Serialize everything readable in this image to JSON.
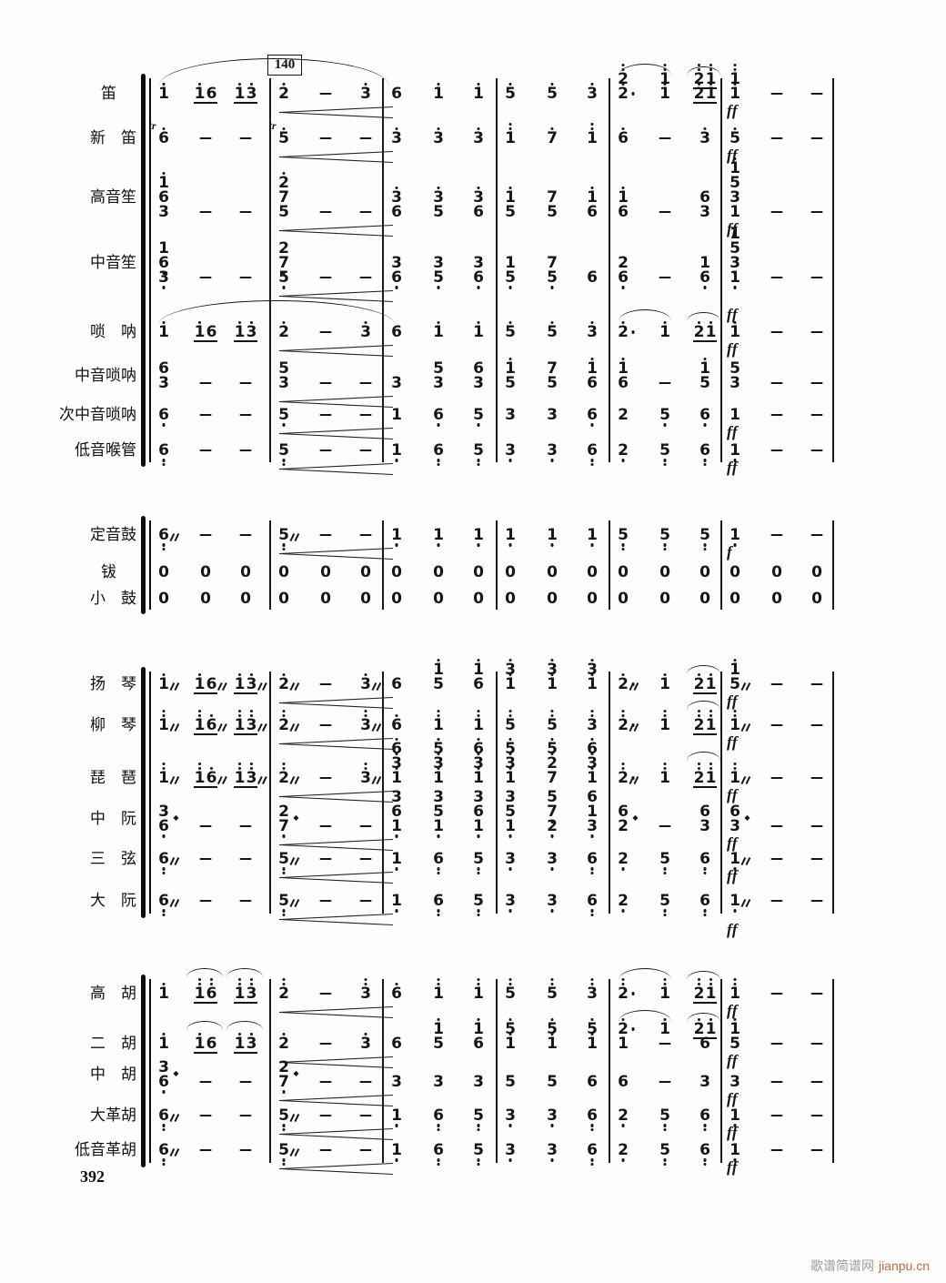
{
  "page": {
    "rehearsal_mark": "140",
    "page_number": "392",
    "watermark": {
      "site_name": "歌谱简谱网",
      "site_url": "jianpu.cn"
    }
  },
  "colors": {
    "ink": "#161616",
    "paper": "#fdfdfc",
    "watermark_gray": "#9b9b9b",
    "watermark_orange": "#c06a45"
  },
  "score": {
    "notation": "jianpu",
    "measures_per_system": 6,
    "beats_per_measure": 3,
    "groups": [
      {
        "name": "winds",
        "instruments": [
          {
            "id": "di",
            "label": "笛",
            "dyn": "ff",
            "cresc": true,
            "cells": [
              [
                "1'",
                "(1' 6)",
                "(1' 3')"
              ],
              [
                "2'",
                "-",
                "3'"
              ],
              [
                "6",
                "1'",
                "1'"
              ],
              [
                "5'",
                "5'",
                "3'"
              ],
              [
                "2''/2'.",
                "1''/1'",
                "(2'' 1'')/(2' 1')"
              ],
              [
                "1''/1'",
                "-",
                "-"
              ]
            ]
          },
          {
            "id": "xindi",
            "label": "新　笛",
            "dyn": "ff",
            "cresc": true,
            "cells": [
              [
                "tr:6'",
                "-",
                "-"
              ],
              [
                "tr:5'",
                "-",
                "-"
              ],
              [
                "3'",
                "3'",
                "3'"
              ],
              [
                "1''",
                "7'",
                "1''"
              ],
              [
                "6'",
                "-",
                "3'"
              ],
              [
                "5'",
                "-",
                "-"
              ]
            ]
          },
          {
            "id": "gaoyinsheng",
            "label": "高音笙",
            "dyn": "ff",
            "cresc": true,
            "cells": [
              [
                "1'/6/3",
                "-",
                "-"
              ],
              [
                "2'/7/5",
                "-",
                "-"
              ],
              [
                "3'/6",
                "3'/5",
                "3'/6"
              ],
              [
                "1'/5",
                "7/5",
                "1'/6"
              ],
              [
                "1'/6",
                "-",
                "6/3"
              ],
              [
                "1'/5/3/1",
                "-",
                "-"
              ]
            ]
          },
          {
            "id": "zhongyinsheng",
            "label": "中音笙",
            "dyn": "ff",
            "cresc": true,
            "cells": [
              [
                "1/6,/3,",
                "-",
                "-"
              ],
              [
                "2/7,/5,",
                "-",
                "-"
              ],
              [
                "3/6,",
                "3/5,",
                "3/6,"
              ],
              [
                "1/5,",
                "7/5,",
                "6"
              ],
              [
                "2/6,",
                "-",
                "1/6,"
              ],
              [
                "1/5/3,/1,",
                "-",
                "-"
              ]
            ]
          },
          {
            "id": "suona",
            "label": "唢　呐",
            "dyn": "ff",
            "cresc": true,
            "cells": [
              [
                "1'",
                "(1' 6)",
                "(1' 3')"
              ],
              [
                "2'",
                "-",
                "3'"
              ],
              [
                "6",
                "1'",
                "1'"
              ],
              [
                "5'",
                "5'",
                "3'"
              ],
              [
                "2'.",
                "1'",
                "(2' 1')"
              ],
              [
                "1'",
                "-",
                "-"
              ]
            ]
          },
          {
            "id": "zhongyinsuona",
            "label": "中音唢呐",
            "dyn": null,
            "cresc": true,
            "cells": [
              [
                "6/3",
                "-",
                "-"
              ],
              [
                "5/3",
                "-",
                "-"
              ],
              [
                "3",
                "5/3",
                "6/3"
              ],
              [
                "1'/5",
                "7/5",
                "1'/6"
              ],
              [
                "1'/6",
                "-",
                "1'/5"
              ],
              [
                "5/3",
                "-",
                "-"
              ]
            ]
          },
          {
            "id": "cizhongyinsuona",
            "label": "次中音唢呐",
            "dyn": "ff",
            "cresc": true,
            "cells": [
              [
                "6,",
                "-",
                "-"
              ],
              [
                "5,",
                "-",
                "-"
              ],
              [
                "1",
                "6,",
                "5,"
              ],
              [
                "3",
                "3",
                "6,"
              ],
              [
                "2",
                "5,",
                "6,"
              ],
              [
                "1",
                "-",
                "-"
              ]
            ]
          },
          {
            "id": "diyinhouguan",
            "label": "低音喉管",
            "dyn": "ff",
            "cresc": true,
            "cells": [
              [
                "6,,",
                "-",
                "-"
              ],
              [
                "5,,",
                "-",
                "-"
              ],
              [
                "1,",
                "6,,",
                "5,,"
              ],
              [
                "3,",
                "3,",
                "6,,"
              ],
              [
                "2,",
                "5,,",
                "6,,"
              ],
              [
                "1,",
                "-",
                "-"
              ]
            ]
          }
        ]
      },
      {
        "name": "percussion",
        "instruments": [
          {
            "id": "dingyingu",
            "label": "定音鼓",
            "dyn": "f",
            "cresc": true,
            "cells": [
              [
                "6,,%",
                "-",
                "-"
              ],
              [
                "5,,%",
                "-",
                "-"
              ],
              [
                "1,",
                "1,",
                "1,"
              ],
              [
                "1,",
                "1,",
                "1,"
              ],
              [
                "5,,",
                "5,,",
                "5,,"
              ],
              [
                "1,",
                "-",
                "-"
              ]
            ]
          },
          {
            "id": "bo",
            "label": "钹",
            "dyn": null,
            "cresc": false,
            "cells": [
              [
                "0",
                "0",
                "0"
              ],
              [
                "0",
                "0",
                "0"
              ],
              [
                "0",
                "0",
                "0"
              ],
              [
                "0",
                "0",
                "0"
              ],
              [
                "0",
                "0",
                "0"
              ],
              [
                "0",
                "0",
                "0"
              ]
            ]
          },
          {
            "id": "xiaogu",
            "label": "小　鼓",
            "dyn": null,
            "cresc": false,
            "cells": [
              [
                "0",
                "0",
                "0"
              ],
              [
                "0",
                "0",
                "0"
              ],
              [
                "0",
                "0",
                "0"
              ],
              [
                "0",
                "0",
                "0"
              ],
              [
                "0",
                "0",
                "0"
              ],
              [
                "0",
                "0",
                "0"
              ]
            ]
          }
        ]
      },
      {
        "name": "plucked-strings",
        "instruments": [
          {
            "id": "yangqin",
            "label": "扬　琴",
            "dyn": "ff",
            "cresc": true,
            "cells": [
              [
                "1'%",
                "(1' 6)%",
                "(1' 3')%"
              ],
              [
                "2'%",
                "-",
                "3'%"
              ],
              [
                "6",
                "1'/5",
                "1'/6"
              ],
              [
                "3'/1'",
                "3'/1'",
                "3'/1'"
              ],
              [
                "2'.%",
                "1'",
                "(2' 1')"
              ],
              [
                "1'/5%",
                "-",
                "-"
              ]
            ]
          },
          {
            "id": "liuqin",
            "label": "柳　琴",
            "dyn": "ff",
            "cresc": true,
            "cells": [
              [
                "1''%",
                "(1'' 6')%",
                "(1'' 3'')%"
              ],
              [
                "2''%",
                "-",
                "3''%"
              ],
              [
                "6'",
                "1''",
                "1''"
              ],
              [
                "5''",
                "5''",
                "3''"
              ],
              [
                "2''.%",
                "1''",
                "(2'' 1'')"
              ],
              [
                "1''%",
                "-",
                "-"
              ]
            ]
          },
          {
            "id": "pipa",
            "label": "琵　琶",
            "dyn": "ff",
            "cresc": true,
            "cells": [
              [
                "1''%",
                "(1'' 6')%",
                "(1'' 3'')%"
              ],
              [
                "2''%",
                "-",
                "3''%"
              ],
              [
                "6'/3'/1'",
                "5'/3'/1'",
                "6'/3'/1'"
              ],
              [
                "5'/3'/1'",
                "5'/2'/7",
                "6'/3'/1'"
              ],
              [
                "2''.%",
                "1''",
                "(2'' 1'')"
              ],
              [
                "1''%",
                "-",
                "-"
              ]
            ]
          },
          {
            "id": "zhongruan",
            "label": "中　阮",
            "dyn": "ff",
            "cresc": true,
            "cells": [
              [
                "3/6,$",
                "-",
                "-"
              ],
              [
                "2/7,$",
                "-",
                "-"
              ],
              [
                "3/6/1,",
                "3/5/1,",
                "3/6/1,"
              ],
              [
                "3/5/1,",
                "5/7,/2,",
                "6/1/3,"
              ],
              [
                "6/2$",
                "-",
                "6/3"
              ],
              [
                "6/3$",
                "-",
                "-"
              ]
            ]
          },
          {
            "id": "sanxian",
            "label": "三　弦",
            "dyn": "ff",
            "cresc": true,
            "cells": [
              [
                "6,,%",
                "-",
                "-"
              ],
              [
                "5,,%",
                "-",
                "-"
              ],
              [
                "1,",
                "6,,",
                "5,,"
              ],
              [
                "3,",
                "3,",
                "6,,"
              ],
              [
                "2,",
                "5,,",
                "6,,"
              ],
              [
                "1,%",
                "-",
                "-"
              ]
            ]
          },
          {
            "id": "daruan",
            "label": "大　阮",
            "dyn": "ff",
            "cresc": true,
            "cells": [
              [
                "6,,%",
                "-",
                "-"
              ],
              [
                "5,,%",
                "-",
                "-"
              ],
              [
                "1,",
                "6,,",
                "5,,"
              ],
              [
                "3,",
                "3,",
                "6,,"
              ],
              [
                "2,",
                "5,,",
                "6,,"
              ],
              [
                "1,%",
                "-",
                "-"
              ]
            ]
          }
        ]
      },
      {
        "name": "bowed-strings",
        "instruments": [
          {
            "id": "gaohu",
            "label": "高　胡",
            "dyn": "ff",
            "cresc": true,
            "cells": [
              [
                "1'",
                "(1'' 6'')",
                "(1'' 3'')"
              ],
              [
                "2''",
                "-",
                "3''"
              ],
              [
                "6'",
                "1''",
                "1''"
              ],
              [
                "5''",
                "5''",
                "3''"
              ],
              [
                "2''.",
                "1''",
                "(2'' 1'')"
              ],
              [
                "1''",
                "-",
                "-"
              ]
            ]
          },
          {
            "id": "erhu",
            "label": "二　胡",
            "dyn": "ff",
            "cresc": true,
            "cells": [
              [
                "1'",
                "(1' 6)",
                "(1' 3')"
              ],
              [
                "2'",
                "-",
                "3'"
              ],
              [
                "6",
                "1'/5",
                "1'/6"
              ],
              [
                "5'/1'",
                "5'/1'",
                "5'/1'"
              ],
              [
                "2'./1",
                "1'/-",
                "(2' 1')/6"
              ],
              [
                "1'/5",
                "-",
                "-"
              ]
            ]
          },
          {
            "id": "zhonghu",
            "label": "中　胡",
            "dyn": "ff",
            "cresc": true,
            "cells": [
              [
                "3/6,$",
                "-",
                "-"
              ],
              [
                "2/7,$",
                "-",
                "-"
              ],
              [
                "3",
                "3",
                "3"
              ],
              [
                "5",
                "5",
                "6"
              ],
              [
                "6",
                "-",
                "3"
              ],
              [
                "3",
                "-",
                "-"
              ]
            ]
          },
          {
            "id": "dagehu",
            "label": "大革胡",
            "dyn": "ff",
            "cresc": true,
            "cells": [
              [
                "6,,%",
                "-",
                "-"
              ],
              [
                "5,,%",
                "-",
                "-"
              ],
              [
                "1,",
                "6,,",
                "5,,"
              ],
              [
                "3,",
                "3,",
                "6,,"
              ],
              [
                "2,",
                "5,,",
                "6,,"
              ],
              [
                "1,",
                "-",
                "-"
              ]
            ]
          },
          {
            "id": "diyingehu",
            "label": "低音革胡",
            "dyn": "ff",
            "cresc": true,
            "cells": [
              [
                "6,,%",
                "-",
                "-"
              ],
              [
                "5,,%",
                "-",
                "-"
              ],
              [
                "1,",
                "6,,",
                "5,,"
              ],
              [
                "3,",
                "3,",
                "6,,"
              ],
              [
                "2,",
                "5,,",
                "6,,"
              ],
              [
                "1,",
                "-",
                "-"
              ]
            ]
          }
        ]
      }
    ]
  }
}
